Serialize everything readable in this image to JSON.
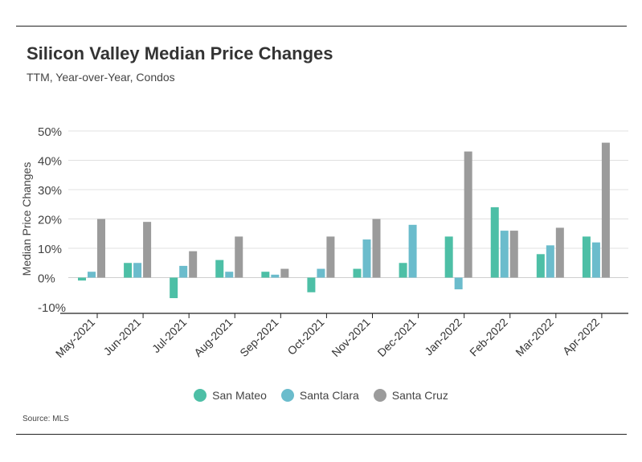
{
  "header": {
    "title": "Silicon Valley Median Price Changes",
    "subtitle": "TTM, Year-over-Year, Condos"
  },
  "footer": {
    "source": "Source:  MLS"
  },
  "colors": {
    "San Mateo": "#4dbfa6",
    "Santa Clara": "#6bbccc",
    "Santa Cruz": "#9b9b9b"
  },
  "chart_data": {
    "type": "bar",
    "title": "Silicon Valley Median Price Changes",
    "subtitle": "TTM, Year-over-Year, Condos",
    "xlabel": "",
    "ylabel": "Median Price Changes",
    "ylim": [
      -10,
      50
    ],
    "yticks": [
      "-10%",
      "0%",
      "10%",
      "20%",
      "30%",
      "40%",
      "50%"
    ],
    "ytick_values": [
      -10,
      0,
      10,
      20,
      30,
      40,
      50
    ],
    "grid": true,
    "legend_position": "bottom",
    "categories": [
      "May-2021",
      "Jun-2021",
      "Jul-2021",
      "Aug-2021",
      "Sep-2021",
      "Oct-2021",
      "Nov-2021",
      "Dec-2021",
      "Jan-2022",
      "Feb-2022",
      "Mar-2022",
      "Apr-2022"
    ],
    "series": [
      {
        "name": "San Mateo",
        "values": [
          -1,
          5,
          -7,
          6,
          2,
          -5,
          3,
          5,
          14,
          24,
          8,
          14
        ]
      },
      {
        "name": "Santa Clara",
        "values": [
          2,
          5,
          4,
          2,
          1,
          3,
          13,
          18,
          -4,
          16,
          11,
          12
        ]
      },
      {
        "name": "Santa Cruz",
        "values": [
          20,
          19,
          9,
          14,
          3,
          14,
          20,
          null,
          43,
          16,
          17,
          46
        ]
      }
    ]
  }
}
